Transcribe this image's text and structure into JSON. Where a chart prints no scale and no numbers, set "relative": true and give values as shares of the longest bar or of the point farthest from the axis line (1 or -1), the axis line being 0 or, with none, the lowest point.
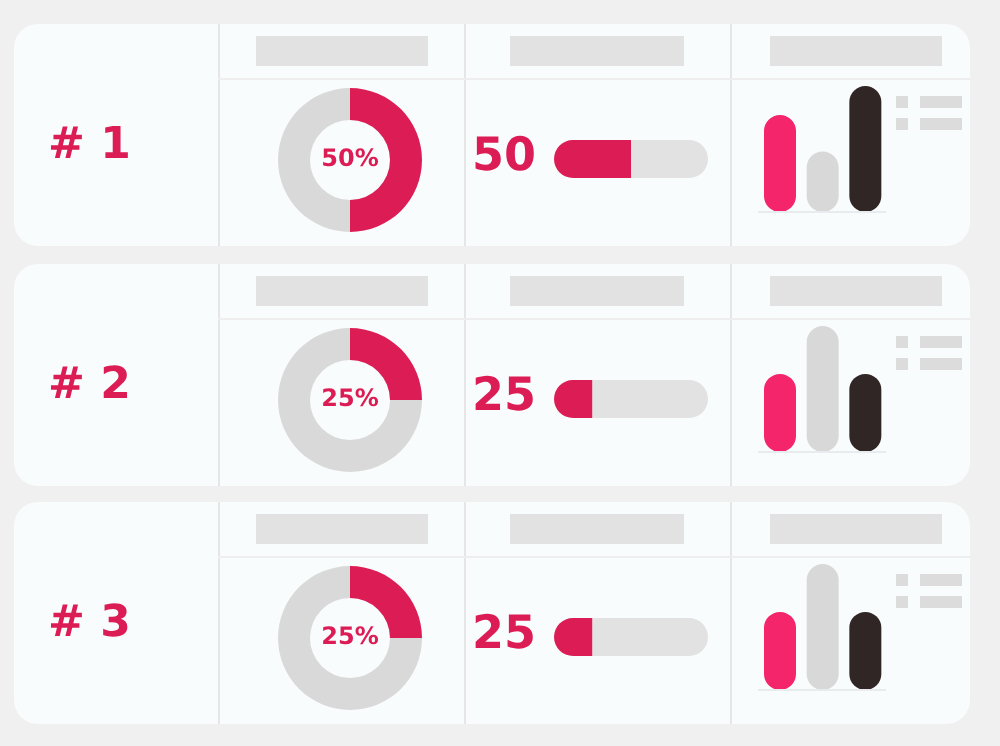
{
  "chart_data": [
    {
      "type": "other",
      "title": "# 1"
    },
    {
      "type": "donut",
      "categories": [
        null,
        null
      ],
      "values": [
        50,
        50
      ],
      "colors": [
        "#dc1d55",
        "#d9d9d9"
      ],
      "value_labels": [
        "50%",
        null
      ]
    },
    {
      "type": "bar",
      "orientation": "horizontal",
      "stacked": true,
      "categories": [
        null
      ],
      "series": [
        {
          "color": "#dc1d55",
          "values": [
            50
          ],
          "value_labels": [
            "50"
          ]
        },
        {
          "color": "#e2e2e2",
          "values": [
            50
          ]
        }
      ]
    },
    {
      "type": "bar",
      "relative": true,
      "categories": [
        null,
        null,
        null
      ],
      "values": [
        0.77,
        0.48,
        1
      ],
      "colors": [
        "#f5256b",
        "#d8d8d8",
        "#312626"
      ]
    },
    {
      "type": "other",
      "title": "# 2"
    },
    {
      "type": "donut",
      "categories": [
        null,
        null
      ],
      "values": [
        25,
        75
      ],
      "colors": [
        "#dc1d55",
        "#d9d9d9"
      ],
      "value_labels": [
        "25%",
        null
      ]
    },
    {
      "type": "bar",
      "orientation": "horizontal",
      "stacked": true,
      "categories": [
        null
      ],
      "series": [
        {
          "color": "#dc1d55",
          "values": [
            25
          ],
          "value_labels": [
            "25"
          ]
        },
        {
          "color": "#e2e2e2",
          "values": [
            75
          ]
        }
      ]
    },
    {
      "type": "bar",
      "relative": true,
      "categories": [
        null,
        null,
        null
      ],
      "values": [
        0.62,
        1,
        0.62
      ],
      "colors": [
        "#f5256b",
        "#d8d8d8",
        "#312626"
      ]
    },
    {
      "type": "other",
      "title": "# 3"
    },
    {
      "type": "donut",
      "categories": [
        null,
        null
      ],
      "values": [
        25,
        75
      ],
      "colors": [
        "#dc1d55",
        "#d9d9d9"
      ],
      "value_labels": [
        "25%",
        null
      ]
    },
    {
      "type": "bar",
      "orientation": "horizontal",
      "stacked": true,
      "categories": [
        null
      ],
      "series": [
        {
          "color": "#dc1d55",
          "values": [
            25
          ],
          "value_labels": [
            "25"
          ]
        },
        {
          "color": "#e2e2e2",
          "values": [
            75
          ]
        }
      ]
    },
    {
      "type": "bar",
      "relative": true,
      "categories": [
        null,
        null,
        null
      ],
      "values": [
        0.62,
        1,
        0.62
      ],
      "colors": [
        "#f5256b",
        "#d8d8d8",
        "#312626"
      ]
    }
  ]
}
